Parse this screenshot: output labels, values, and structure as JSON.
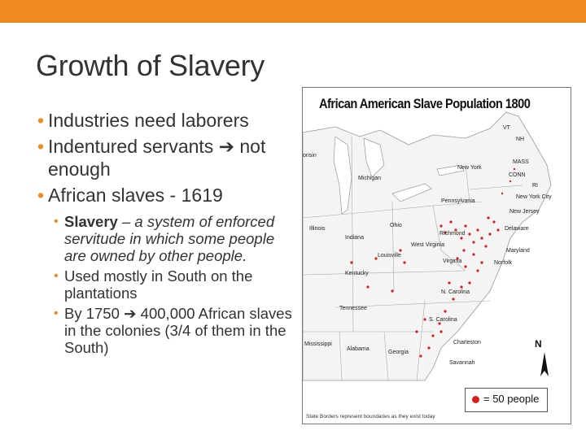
{
  "slide": {
    "accent_color": "#EF8B1E",
    "title": "Growth of Slavery",
    "bullets_level1": [
      {
        "text": "Industries need laborers"
      },
      {
        "text": "Indentured servants",
        "arrow": "➔",
        "text_after": " not enough"
      },
      {
        "text": "African slaves - 1619"
      }
    ],
    "bullets_level2": [
      {
        "strong": "Slavery",
        "text": " – a system of enforced servitude in which some people are owned by other people."
      },
      {
        "text": "Used mostly in South on the plantations"
      },
      {
        "text": "By 1750",
        "arrow": "➔",
        "text_after": " 400,000 African slaves in the colonies (3/4 of them in the South)"
      }
    ]
  },
  "map": {
    "title": "African American Slave Population   1800",
    "legend": "= 50 people",
    "north_label": "N",
    "footnote": "State Borders represent boundaries as they exist today",
    "state_labels": [
      "VT",
      "NH",
      "MASS",
      "CONN",
      "RI",
      "New York",
      "New York City",
      "Pennsylvania",
      "New Jersey",
      "Delaware",
      "Maryland",
      "Michigan",
      "Ohio",
      "Indiana",
      "Illinois",
      "West Virginia",
      "Virginia",
      "Norfolk",
      "Kentucky",
      "Tennessee",
      "N. Carolina",
      "S. Carolina",
      "Charleston",
      "Savannah",
      "Georgia",
      "Alabama",
      "Mississippi",
      "onsin",
      "Richmond",
      "Louisville"
    ],
    "dot_color": "#e01a1a"
  }
}
